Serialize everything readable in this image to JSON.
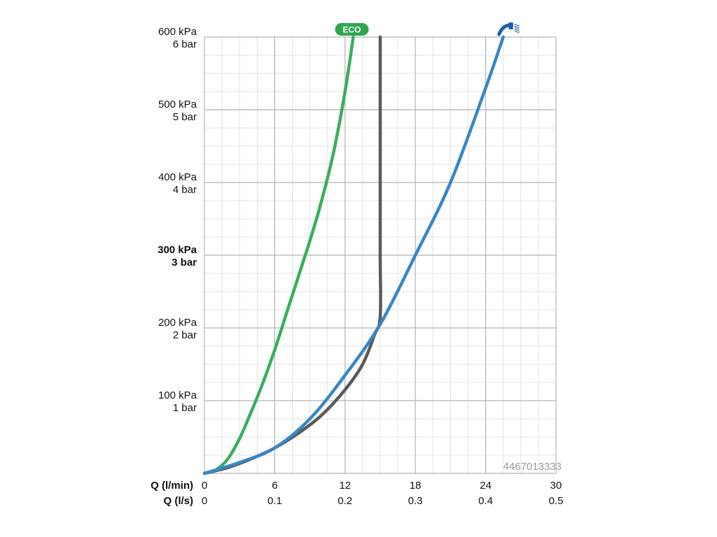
{
  "chart_data": {
    "type": "line",
    "xlabel": "Q (l/min)",
    "xlabel2": "Q (l/s)",
    "x_ticks_lmin": [
      "0",
      "6",
      "12",
      "18",
      "24",
      "30"
    ],
    "x_ticks_ls": [
      "0",
      "0.1",
      "0.2",
      "0.3",
      "0.4",
      "0.5"
    ],
    "xlim": [
      0,
      30
    ],
    "ylim": [
      0,
      600
    ],
    "y_ticks": [
      {
        "value": 600,
        "kpa": "600 kPa",
        "bar": "6 bar",
        "bold": false
      },
      {
        "value": 500,
        "kpa": "500 kPa",
        "bar": "5 bar",
        "bold": false
      },
      {
        "value": 400,
        "kpa": "400 kPa",
        "bar": "4 bar",
        "bold": false
      },
      {
        "value": 300,
        "kpa": "300 kPa",
        "bar": "3 bar",
        "bold": true
      },
      {
        "value": 200,
        "kpa": "200 kPa",
        "bar": "2 bar",
        "bold": false
      },
      {
        "value": 100,
        "kpa": "100 kPa",
        "bar": "1 bar",
        "bold": false
      }
    ],
    "grid": true,
    "product_code": "4467013333",
    "eco_badge": "ECO",
    "series": [
      {
        "id": "eco",
        "color": "#3aae5c",
        "points": [
          [
            0,
            0
          ],
          [
            1,
            5
          ],
          [
            2,
            20
          ],
          [
            3,
            48
          ],
          [
            4,
            85
          ],
          [
            5,
            125
          ],
          [
            6,
            170
          ],
          [
            7,
            220
          ],
          [
            8,
            270
          ],
          [
            9,
            320
          ],
          [
            10,
            375
          ],
          [
            11,
            440
          ],
          [
            12,
            525
          ],
          [
            12.7,
            600
          ]
        ]
      },
      {
        "id": "limiter",
        "color": "#5a5a5a",
        "points": [
          [
            0,
            0
          ],
          [
            2,
            8
          ],
          [
            4,
            20
          ],
          [
            6,
            35
          ],
          [
            8,
            55
          ],
          [
            10,
            80
          ],
          [
            12,
            115
          ],
          [
            13.5,
            150
          ],
          [
            14.5,
            190
          ],
          [
            15,
            215
          ],
          [
            15,
            300
          ],
          [
            15,
            400
          ],
          [
            15,
            500
          ],
          [
            15,
            600
          ]
        ]
      },
      {
        "id": "shower",
        "color": "#3a86c4",
        "points": [
          [
            0,
            0
          ],
          [
            3,
            15
          ],
          [
            6,
            35
          ],
          [
            9,
            75
          ],
          [
            12,
            135
          ],
          [
            15,
            205
          ],
          [
            18,
            300
          ],
          [
            21,
            400
          ],
          [
            24,
            530
          ],
          [
            25.5,
            600
          ]
        ]
      }
    ]
  }
}
